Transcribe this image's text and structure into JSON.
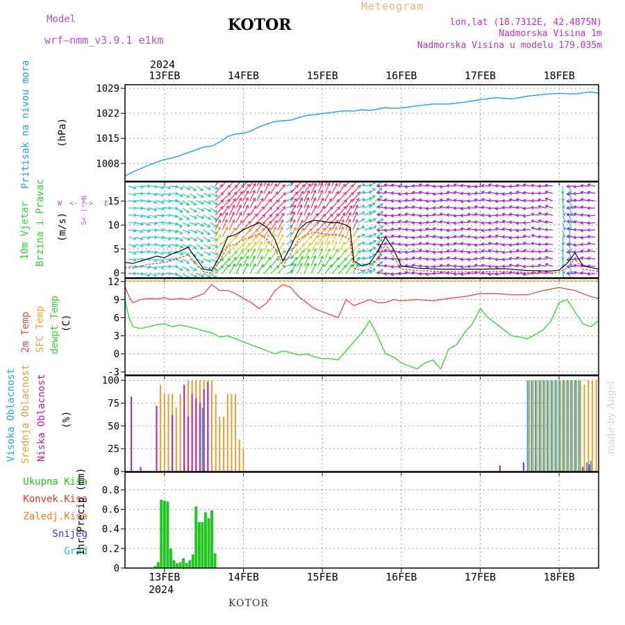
{
  "header": {
    "model_label": "Model",
    "model_name": "wrf—nmm_v3.9.1  e1km",
    "title": "KOTOR",
    "meteogram": "Meteogram",
    "lonlat": "lon,lat (18.7312E, 42.4875N)",
    "altitude": "Nadmorska Visina 1m",
    "model_altitude": "Nadmorska Visina u modelu 179.035m"
  },
  "footer": {
    "station": "KOTOR",
    "watermark": "made by Angel"
  },
  "colors": {
    "pressure": "#1ea0e6",
    "temp2m": "#e84646",
    "sfc": "#e6a833",
    "dewpt": "#2ed12e",
    "high_cloud": "#22aadd",
    "mid_cloud": "#e0a030",
    "low_cloud": "#cc1a9a",
    "precip_total": "#22c422",
    "convective": "#e83030",
    "frozen": "#f07a20",
    "snow": "#3a3ad6",
    "grad": "#2abcb0",
    "wind_purple": "#9a22cc"
  },
  "chart_data": [
    {
      "type": "line",
      "panel": "pressure",
      "ylabel": "Pritisak na nivou mora",
      "units": "(hPa)",
      "ylim": [
        1003,
        1030
      ],
      "yticks": [
        "1008",
        "1015",
        "1022",
        "1029"
      ],
      "xlim": [
        12.5,
        18.5
      ],
      "date_ticks": [
        "13FEB",
        "14FEB",
        "15FEB",
        "16FEB",
        "17FEB",
        "18FEB"
      ],
      "year": "2024",
      "grid": true,
      "series": [
        {
          "name": "Pritisak na nivou mora",
          "x": [
            12.5,
            12.6,
            12.7,
            12.8,
            12.9,
            13.0,
            13.1,
            13.2,
            13.3,
            13.4,
            13.5,
            13.6,
            13.7,
            13.8,
            13.9,
            14.0,
            14.1,
            14.2,
            14.3,
            14.4,
            14.5,
            14.6,
            14.7,
            14.8,
            14.9,
            15.0,
            15.1,
            15.2,
            15.3,
            15.4,
            15.5,
            15.6,
            15.7,
            15.8,
            15.9,
            16.0,
            16.2,
            16.4,
            16.6,
            16.8,
            17.0,
            17.2,
            17.4,
            17.6,
            17.8,
            18.0,
            18.2,
            18.4,
            18.5
          ],
          "y": [
            1004.5,
            1005.6,
            1006.5,
            1007.5,
            1008.3,
            1009.1,
            1009.5,
            1010.2,
            1011.0,
            1011.8,
            1012.6,
            1012.8,
            1014.0,
            1015.5,
            1016.2,
            1016.4,
            1017.1,
            1018.2,
            1019.0,
            1019.7,
            1019.9,
            1020.1,
            1020.8,
            1021.4,
            1021.6,
            1022.0,
            1022.2,
            1022.5,
            1022.7,
            1022.6,
            1023.0,
            1022.8,
            1023.2,
            1023.6,
            1023.4,
            1023.5,
            1024.1,
            1024.6,
            1024.6,
            1025.1,
            1025.8,
            1026.4,
            1026.0,
            1026.8,
            1027.3,
            1027.6,
            1027.4,
            1028.0,
            1027.6
          ]
        }
      ]
    },
    {
      "type": "line",
      "panel": "wind",
      "ylabel": "10m Vjetar",
      "ylabel2": "Brzina i Pravac",
      "units": "(m/s)",
      "compass": {
        "w": "W",
        "e": "E",
        "n": "N",
        "s": "S"
      },
      "ylim": [
        -1,
        19
      ],
      "yticks": [
        "0",
        "5",
        "10",
        "15"
      ],
      "xlim": [
        12.5,
        18.5
      ],
      "grid": true,
      "series": [
        {
          "name": "speed",
          "x": [
            12.5,
            12.6,
            12.7,
            12.8,
            12.9,
            13.0,
            13.1,
            13.2,
            13.3,
            13.4,
            13.5,
            13.6,
            13.7,
            13.8,
            13.9,
            14.0,
            14.1,
            14.2,
            14.3,
            14.4,
            14.5,
            14.6,
            14.7,
            14.8,
            14.9,
            15.0,
            15.1,
            15.2,
            15.3,
            15.35,
            15.4,
            15.5,
            15.6,
            15.7,
            15.8,
            15.9,
            16.0,
            16.2,
            16.5,
            16.8,
            17.0,
            17.3,
            17.6,
            17.9,
            18.0,
            18.1,
            18.2,
            18.3,
            18.5
          ],
          "y": [
            2.2,
            2.0,
            2.5,
            3.0,
            3.5,
            3.2,
            4.0,
            4.6,
            5.4,
            3.0,
            0.8,
            0.5,
            3.5,
            7.5,
            8.0,
            9.0,
            9.8,
            10.5,
            9.5,
            7.0,
            2.5,
            5.5,
            9.0,
            10.5,
            11.0,
            10.8,
            10.5,
            10.5,
            10.0,
            9.5,
            2.5,
            1.5,
            2.0,
            4.5,
            7.5,
            5.0,
            1.5,
            1.0,
            0.8,
            0.8,
            0.8,
            0.9,
            0.5,
            0.4,
            0.6,
            2.0,
            4.2,
            1.5,
            0.8
          ]
        },
        {
          "name": "gust",
          "x": [
            12.5,
            12.6,
            12.7,
            12.8,
            12.9,
            13.0,
            13.1,
            13.2,
            13.3,
            13.4,
            13.5,
            13.6,
            13.7,
            13.8,
            13.9,
            14.0,
            14.1,
            14.2,
            14.3,
            14.4,
            14.5,
            14.6,
            14.7,
            14.8,
            14.9,
            15.0,
            15.1,
            15.2,
            15.3,
            15.35,
            15.4,
            15.5,
            15.6,
            15.7,
            15.8,
            15.9,
            16.0,
            16.2,
            16.5,
            16.8,
            17.0,
            17.3,
            17.6,
            17.9,
            18.0,
            18.1,
            18.2,
            18.3,
            18.5
          ],
          "y": [
            1.2,
            1.0,
            1.4,
            1.8,
            2.0,
            2.2,
            2.6,
            3.2,
            3.8,
            2.0,
            0.2,
            0.0,
            2.5,
            5.5,
            6.0,
            7.0,
            7.5,
            8.2,
            7.0,
            5.0,
            1.5,
            4.0,
            7.0,
            8.0,
            8.5,
            8.2,
            8.0,
            8.0,
            7.5,
            7.0,
            1.0,
            0.5,
            0.8,
            3.0,
            6.0,
            3.5,
            0.8,
            0.5,
            0.3,
            0.2,
            0.3,
            0.3,
            0.1,
            0.0,
            0.2,
            1.0,
            3.0,
            0.8,
            0.3
          ]
        }
      ]
    },
    {
      "type": "line",
      "panel": "temperature",
      "ylabels": [
        "2m Temp",
        "SFC Temp",
        "dewpt Temp"
      ],
      "units": "(C)",
      "ylim": [
        -3.5,
        12.5
      ],
      "yticks": [
        "-3",
        "0",
        "3",
        "6",
        "9",
        "12"
      ],
      "xlim": [
        12.5,
        18.5
      ],
      "grid": true,
      "series": [
        {
          "name": "2m Temp",
          "x": [
            12.5,
            12.55,
            12.6,
            12.7,
            12.8,
            12.9,
            13.0,
            13.1,
            13.2,
            13.3,
            13.4,
            13.5,
            13.6,
            13.7,
            13.8,
            13.9,
            14.0,
            14.1,
            14.2,
            14.3,
            14.4,
            14.5,
            14.6,
            14.7,
            14.8,
            14.9,
            15.0,
            15.1,
            15.2,
            15.3,
            15.4,
            15.5,
            15.6,
            15.7,
            15.8,
            15.9,
            16.0,
            16.2,
            16.4,
            16.6,
            16.8,
            17.0,
            17.2,
            17.4,
            17.6,
            17.8,
            18.0,
            18.2,
            18.4,
            18.5
          ],
          "y": [
            11.2,
            9.5,
            8.5,
            9.0,
            9.2,
            9.1,
            9.3,
            9.0,
            9.2,
            9.0,
            9.5,
            10.0,
            11.5,
            10.5,
            10.5,
            10.0,
            9.2,
            8.5,
            7.5,
            8.5,
            10.5,
            11.5,
            11.0,
            9.5,
            8.5,
            7.5,
            7.0,
            6.5,
            6.0,
            9.0,
            8.0,
            8.5,
            9.0,
            8.5,
            8.5,
            9.0,
            8.8,
            9.0,
            8.8,
            9.2,
            9.5,
            10.0,
            10.0,
            9.8,
            9.8,
            10.5,
            11.0,
            10.5,
            9.5,
            9.2
          ]
        },
        {
          "name": "SFC Temp",
          "x": [
            12.5,
            13.5,
            14.5,
            15.5,
            16.5,
            17.5,
            18.5
          ],
          "y": [
            12.1,
            12.1,
            12.1,
            12.1,
            12.1,
            12.1,
            12.1
          ]
        },
        {
          "name": "dewpt Temp",
          "x": [
            12.5,
            12.55,
            12.6,
            12.7,
            12.8,
            12.9,
            13.0,
            13.1,
            13.2,
            13.3,
            13.4,
            13.5,
            13.6,
            13.7,
            13.8,
            13.9,
            14.0,
            14.1,
            14.2,
            14.3,
            14.4,
            14.5,
            14.6,
            14.7,
            14.8,
            14.9,
            15.0,
            15.1,
            15.2,
            15.3,
            15.4,
            15.5,
            15.6,
            15.7,
            15.8,
            15.9,
            16.0,
            16.1,
            16.2,
            16.3,
            16.4,
            16.5,
            16.6,
            16.7,
            16.8,
            16.9,
            17.0,
            17.1,
            17.2,
            17.3,
            17.4,
            17.5,
            17.6,
            17.7,
            17.8,
            17.9,
            18.0,
            18.1,
            18.2,
            18.3,
            18.4,
            18.5
          ],
          "y": [
            9.0,
            6.0,
            4.5,
            4.2,
            4.5,
            4.8,
            5.0,
            4.5,
            4.8,
            4.5,
            4.2,
            3.8,
            3.5,
            2.8,
            3.0,
            2.5,
            2.0,
            1.5,
            1.0,
            0.5,
            0.0,
            0.5,
            0.2,
            -0.2,
            0.0,
            -0.5,
            -0.8,
            -0.8,
            -1.0,
            0.5,
            2.0,
            3.5,
            5.5,
            3.0,
            0.0,
            -0.5,
            -1.5,
            -2.0,
            -2.5,
            -1.5,
            -1.0,
            -2.5,
            0.8,
            1.5,
            3.5,
            5.0,
            7.5,
            6.0,
            5.0,
            4.0,
            3.0,
            2.8,
            2.5,
            3.2,
            4.0,
            5.5,
            8.5,
            9.0,
            7.0,
            5.0,
            4.5,
            5.5
          ]
        }
      ]
    },
    {
      "type": "bar",
      "panel": "clouds",
      "ylabels": [
        "Visoka Oblacnost",
        "Srednja Oblacnost",
        "Niska Oblacnost"
      ],
      "units": "(%)",
      "ylim": [
        0,
        105
      ],
      "yticks": [
        "0",
        "25",
        "50",
        "75",
        "100"
      ],
      "xlim": [
        12.5,
        18.5
      ],
      "grid": true,
      "series": [
        {
          "name": "Visoka Oblacnost",
          "x": [
            13.45,
            13.48,
            17.6,
            17.65,
            17.7,
            17.75,
            17.8,
            17.85,
            17.9,
            17.95,
            18.0,
            18.05,
            18.1,
            18.15,
            18.2,
            18.25,
            18.35,
            18.4
          ],
          "y": [
            65,
            70,
            100,
            100,
            100,
            100,
            100,
            100,
            100,
            100,
            100,
            100,
            100,
            100,
            100,
            100,
            10,
            12
          ]
        },
        {
          "name": "Srednja Oblacnost",
          "x": [
            12.95,
            13.0,
            13.05,
            13.1,
            13.15,
            13.2,
            13.25,
            13.3,
            13.35,
            13.4,
            13.45,
            13.5,
            13.55,
            13.6,
            13.65,
            13.7,
            13.75,
            13.8,
            13.85,
            13.9,
            13.95,
            14.0,
            17.62,
            17.67,
            17.72,
            17.77,
            17.82,
            17.87,
            17.92,
            17.97,
            18.02,
            18.07,
            18.12,
            18.17,
            18.22,
            18.27,
            18.32,
            18.37,
            18.42,
            18.47
          ],
          "y": [
            95,
            85,
            85,
            85,
            70,
            85,
            95,
            100,
            100,
            100,
            100,
            100,
            100,
            100,
            85,
            60,
            60,
            85,
            85,
            85,
            35,
            25,
            100,
            100,
            100,
            100,
            100,
            100,
            100,
            100,
            100,
            100,
            100,
            100,
            100,
            100,
            95,
            100,
            100,
            100
          ]
        },
        {
          "name": "Niska Oblacnost",
          "x": [
            12.58,
            12.7,
            12.9,
            13.1,
            13.25,
            13.3,
            13.35,
            13.4,
            13.45,
            13.5,
            13.55,
            17.25,
            17.55,
            18.3,
            18.38
          ],
          "y": [
            82,
            5,
            72,
            62,
            95,
            60,
            85,
            80,
            75,
            90,
            98,
            7,
            10,
            5,
            8
          ]
        }
      ]
    },
    {
      "type": "bar",
      "panel": "precipitation",
      "legend": [
        "Ukupna Kisa",
        "Konvek.Kisa",
        "Zaledj.Kisa",
        "Snijeg",
        "Grad"
      ],
      "ylabel": "1hr Precip (mm)",
      "ylim": [
        0,
        0.98
      ],
      "yticks": [
        "0",
        "0.2",
        "0.4",
        "0.6",
        "0.8"
      ],
      "xlim": [
        12.5,
        18.5
      ],
      "grid": true,
      "series": [
        {
          "name": "Ukupna Kisa",
          "x": [
            12.88,
            12.92,
            12.96,
            13.0,
            13.04,
            13.08,
            13.12,
            13.16,
            13.2,
            13.24,
            13.28,
            13.32,
            13.36,
            13.4,
            13.44,
            13.48,
            13.52,
            13.56,
            13.6,
            13.64
          ],
          "y": [
            0.02,
            0.06,
            0.7,
            0.69,
            0.68,
            0.2,
            0.08,
            0.05,
            0.06,
            0.1,
            0.05,
            0.08,
            0.14,
            0.63,
            0.47,
            0.47,
            0.57,
            0.51,
            0.59,
            0.15
          ]
        }
      ]
    }
  ]
}
